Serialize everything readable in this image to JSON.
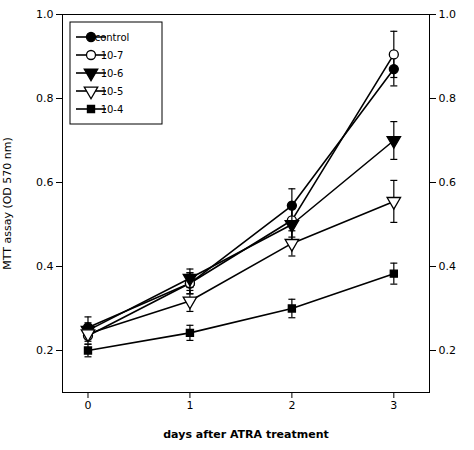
{
  "chart_data": {
    "type": "line",
    "xlabel": "days after ATRA treatment",
    "ylabel": "MTT assay (OD 570 nm)",
    "x": [
      0,
      1,
      2,
      3
    ],
    "series": [
      {
        "name": "control",
        "color": "#000000",
        "marker": "circle",
        "values": [
          0.255,
          0.36,
          0.545,
          0.87
        ],
        "yerr": [
          0.025,
          0.025,
          0.04,
          0.04
        ]
      },
      {
        "name": "10-7",
        "color": "#000000",
        "marker": "circle-open",
        "values": [
          0.235,
          0.36,
          0.51,
          0.905
        ],
        "yerr": [
          0.02,
          0.025,
          0.04,
          0.055
        ]
      },
      {
        "name": "10-6",
        "color": "#000000",
        "marker": "triangle-down",
        "values": [
          0.248,
          0.372,
          0.5,
          0.7
        ],
        "yerr": [
          0.018,
          0.022,
          0.038,
          0.045
        ]
      },
      {
        "name": "10-5",
        "color": "#000000",
        "marker": "triangle-down-open",
        "values": [
          0.24,
          0.318,
          0.455,
          0.555
        ],
        "yerr": [
          0.018,
          0.025,
          0.03,
          0.05
        ]
      },
      {
        "name": "10-4",
        "color": "#000000",
        "marker": "square",
        "values": [
          0.2,
          0.242,
          0.3,
          0.383
        ],
        "yerr": [
          0.015,
          0.018,
          0.022,
          0.025
        ]
      }
    ],
    "xlim": [
      -0.25,
      3.35
    ],
    "xticks": [
      0,
      1,
      2,
      3
    ],
    "ylim": [
      0.1,
      1.0
    ],
    "yticks": [
      0.2,
      0.4,
      0.6,
      0.8,
      {
        "value": 1.0,
        "label": "1.0"
      }
    ],
    "y2lim": [
      0.1,
      1.0
    ],
    "y2ticks": [
      0.2,
      0.4,
      0.6,
      0.8,
      {
        "value": 1.0,
        "label": "1.0"
      }
    ],
    "grid": false,
    "legend": "upper left"
  }
}
